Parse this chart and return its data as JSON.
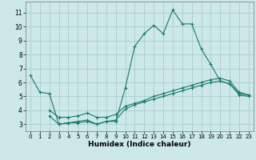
{
  "title": "",
  "xlabel": "Humidex (Indice chaleur)",
  "ylabel": "",
  "background_color": "#cce8e8",
  "grid_color": "#aacccc",
  "line_color": "#1a7a6a",
  "x_ticks": [
    0,
    1,
    2,
    3,
    4,
    5,
    6,
    7,
    8,
    9,
    10,
    11,
    12,
    13,
    14,
    15,
    16,
    17,
    18,
    19,
    20,
    21,
    22,
    23
  ],
  "y_ticks": [
    3,
    4,
    5,
    6,
    7,
    8,
    9,
    10,
    11
  ],
  "ylim": [
    2.5,
    11.8
  ],
  "xlim": [
    -0.5,
    23.5
  ],
  "series": [
    {
      "x": [
        0,
        1,
        2,
        3,
        4,
        5,
        6,
        7,
        8,
        9,
        10,
        11,
        12,
        13,
        14,
        15,
        16,
        17,
        18,
        19,
        20,
        21,
        22,
        23
      ],
      "y": [
        6.5,
        5.3,
        5.2,
        3.0,
        3.1,
        3.1,
        3.2,
        3.0,
        3.2,
        3.2,
        5.6,
        8.6,
        9.5,
        10.1,
        9.5,
        11.2,
        10.2,
        10.2,
        8.4,
        7.3,
        6.1,
        5.9,
        5.2,
        5.1
      ]
    },
    {
      "x": [
        2,
        3,
        4,
        5,
        6,
        7,
        8,
        9,
        10,
        11,
        12,
        13,
        14,
        15,
        16,
        17,
        18,
        19,
        20,
        21,
        22,
        23
      ],
      "y": [
        3.6,
        3.0,
        3.1,
        3.2,
        3.3,
        3.0,
        3.2,
        3.3,
        4.1,
        4.4,
        4.6,
        4.8,
        5.0,
        5.2,
        5.4,
        5.6,
        5.8,
        6.0,
        6.1,
        5.9,
        5.1,
        5.0
      ]
    },
    {
      "x": [
        2,
        3,
        4,
        5,
        6,
        7,
        8,
        9,
        10,
        11,
        12,
        13,
        14,
        15,
        16,
        17,
        18,
        19,
        20,
        21,
        22,
        23
      ],
      "y": [
        4.0,
        3.5,
        3.5,
        3.6,
        3.8,
        3.5,
        3.5,
        3.7,
        4.3,
        4.5,
        4.7,
        5.0,
        5.2,
        5.4,
        5.6,
        5.8,
        6.0,
        6.2,
        6.3,
        6.1,
        5.3,
        5.1
      ]
    }
  ]
}
